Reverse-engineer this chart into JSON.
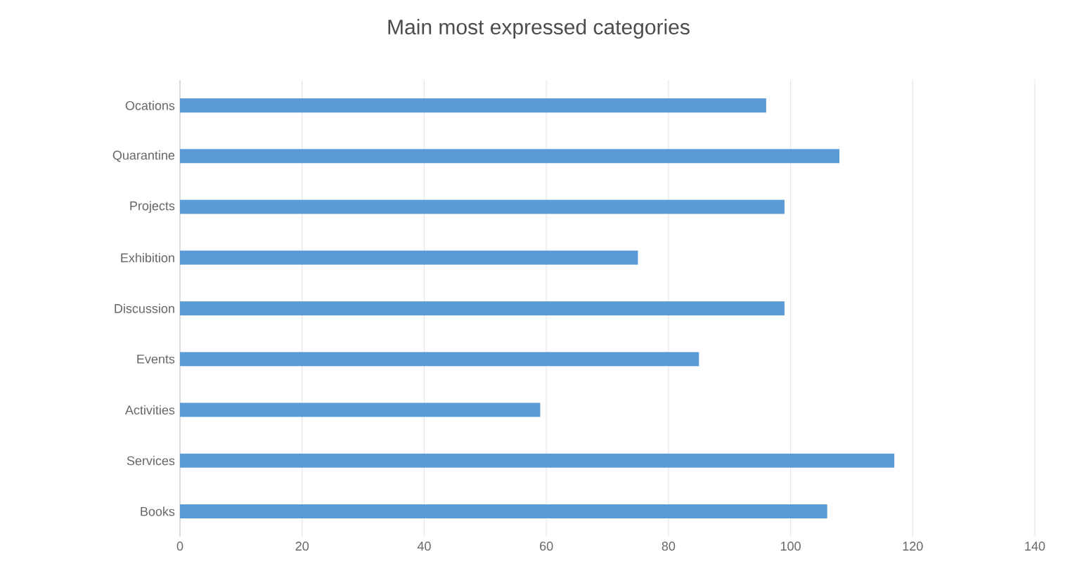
{
  "chart_data": {
    "type": "bar",
    "orientation": "horizontal",
    "title": "Main most expressed categories",
    "categories": [
      "Ocations",
      "Quarantine",
      "Projects",
      "Exhibition",
      "Discussion",
      "Events",
      "Activities",
      "Services",
      "Books"
    ],
    "values": [
      96,
      108,
      99,
      75,
      99,
      85,
      59,
      117,
      106
    ],
    "color": "#5b9bd5",
    "xlim": [
      0,
      140
    ],
    "xticks": [
      0,
      20,
      40,
      60,
      80,
      100,
      120,
      140
    ],
    "grid": "x"
  }
}
